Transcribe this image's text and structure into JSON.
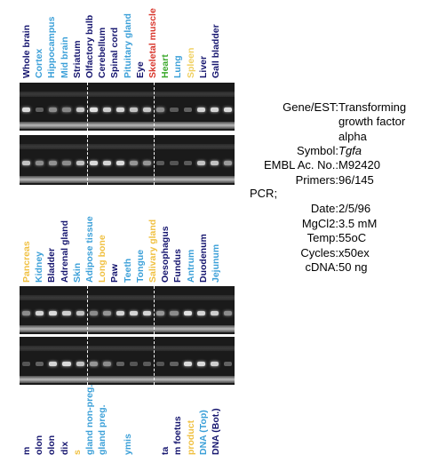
{
  "panel_top": {
    "lanes": [
      {
        "label": "Whole brain",
        "color": "#14146e"
      },
      {
        "label": "Cortex",
        "color": "#3a9fd8"
      },
      {
        "label": "Hippocampus",
        "color": "#3a9fd8"
      },
      {
        "label": "Mid brain",
        "color": "#3a9fd8"
      },
      {
        "label": "Striatum",
        "color": "#14146e"
      },
      {
        "label": "Olfactory bulb",
        "color": "#14146e"
      },
      {
        "label": "Cerebellum",
        "color": "#14146e"
      },
      {
        "label": "Spinal cord",
        "color": "#14146e"
      },
      {
        "label": "Pituitary gland",
        "color": "#3a9fd8"
      },
      {
        "label": "Eye",
        "color": "#14146e"
      },
      {
        "label": "Skeletal muscle",
        "color": "#d8342a"
      },
      {
        "label": "Heart",
        "color": "#3aa82a"
      },
      {
        "label": "Lung",
        "color": "#3a9fd8"
      },
      {
        "label": "Spleen",
        "color": "#f0d060"
      },
      {
        "label": "Liver",
        "color": "#14146e"
      },
      {
        "label": "Gall bladder",
        "color": "#14146e"
      }
    ]
  },
  "panel_bottom": {
    "lanes": [
      {
        "label": "Pancreas",
        "color": "#f0c040"
      },
      {
        "label": "Kidney",
        "color": "#3a9fd8"
      },
      {
        "label": "Bladder",
        "color": "#14146e"
      },
      {
        "label": "Adrenal gland",
        "color": "#14146e"
      },
      {
        "label": "Skin",
        "color": "#3a9fd8"
      },
      {
        "label": "Adipose tissue",
        "color": "#3a9fd8"
      },
      {
        "label": "Long bone",
        "color": "#f0c040"
      },
      {
        "label": "Paw",
        "color": "#14146e"
      },
      {
        "label": "Teeth",
        "color": "#3a9fd8"
      },
      {
        "label": "Tongue",
        "color": "#3a9fd8"
      },
      {
        "label": "Salivary gland",
        "color": "#f0c040"
      },
      {
        "label": "Oesophagus",
        "color": "#14146e"
      },
      {
        "label": "Fundus",
        "color": "#14146e"
      },
      {
        "label": "Antrum",
        "color": "#3a9fd8"
      },
      {
        "label": "Duodenum",
        "color": "#14146e"
      },
      {
        "label": "Jejunum",
        "color": "#3a9fd8"
      }
    ]
  },
  "panel_cut": {
    "lanes": [
      {
        "label": "m",
        "color": "#14146e"
      },
      {
        "label": "olon",
        "color": "#14146e"
      },
      {
        "label": "olon",
        "color": "#14146e"
      },
      {
        "label": "dix",
        "color": "#14146e"
      },
      {
        "label": "s",
        "color": "#f0c040"
      },
      {
        "label": "gland non-preg.",
        "color": "#3a9fd8"
      },
      {
        "label": "gland preg.",
        "color": "#3a9fd8"
      },
      {
        "label": "",
        "color": "#14146e"
      },
      {
        "label": "ymis",
        "color": "#3a9fd8"
      },
      {
        "label": "",
        "color": "#14146e"
      },
      {
        "label": "",
        "color": "#14146e"
      },
      {
        "label": "ta",
        "color": "#14146e"
      },
      {
        "label": "m foetus",
        "color": "#14146e"
      },
      {
        "label": "product",
        "color": "#f0c040"
      },
      {
        "label": "DNA (Top)",
        "color": "#3a9fd8"
      },
      {
        "label": "DNA (Bot.)",
        "color": "#14146e"
      }
    ]
  },
  "info": {
    "rows": [
      {
        "key": "Gene/EST:",
        "value": "Transforming"
      },
      {
        "key": "",
        "value": "growth factor"
      },
      {
        "key": "",
        "value": "alpha"
      },
      {
        "key": "Symbol:",
        "value": "Tgfa",
        "italic": true
      },
      {
        "key": "EMBL Ac. No.:",
        "value": "M92420"
      },
      {
        "key": "Primers:",
        "value": "96/145"
      }
    ],
    "pcr_label": "PCR;",
    "pcr_rows": [
      {
        "key": "Date:",
        "value": "2/5/96"
      },
      {
        "key": "MgCl2:",
        "value": "3.5 mM"
      },
      {
        "key": "Temp:",
        "value": "55oC"
      },
      {
        "key": "Cycles:",
        "value": "x50ex"
      },
      {
        "key": "cDNA:",
        "value": "50 ng"
      }
    ]
  },
  "gels": {
    "top_1": [
      0.9,
      0.35,
      0.5,
      0.45,
      0.75,
      0.95,
      0.8,
      0.85,
      0.7,
      0.75,
      0.5,
      0.3,
      0.4,
      0.85,
      0.85,
      0.9
    ],
    "top_2": [
      0.7,
      0.5,
      0.55,
      0.5,
      0.7,
      0.9,
      0.85,
      0.9,
      0.6,
      0.6,
      0.3,
      0.2,
      0.3,
      0.7,
      0.7,
      0.65
    ],
    "bottom_1": [
      0.5,
      0.85,
      0.9,
      0.8,
      0.7,
      0.5,
      0.6,
      0.85,
      0.85,
      0.85,
      0.6,
      0.5,
      0.95,
      0.85,
      0.8,
      0.5
    ],
    "bottom_2": [
      0.2,
      0.4,
      0.85,
      0.9,
      0.7,
      0.6,
      0.5,
      0.4,
      0.2,
      0.3,
      0.2,
      0.4,
      0.9,
      0.9,
      0.8,
      0.4
    ]
  }
}
